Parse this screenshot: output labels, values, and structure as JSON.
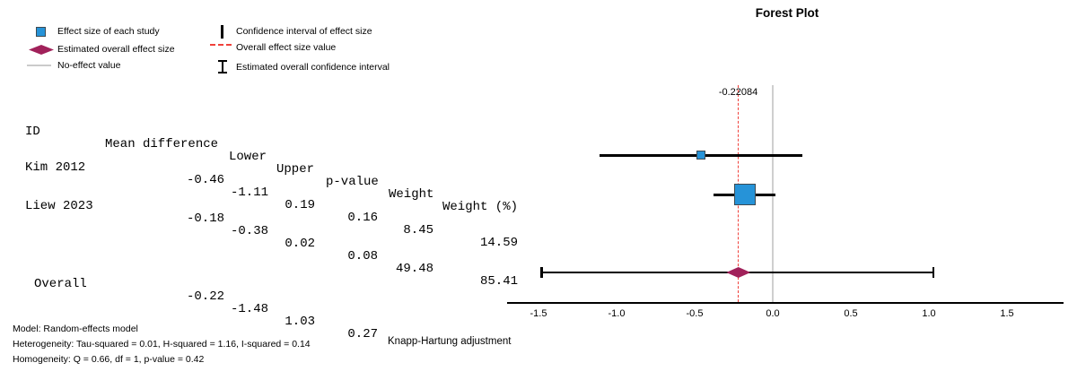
{
  "title": "Forest Plot",
  "legend": {
    "items": [
      {
        "icon": "study-square-icon",
        "label": "Effect size of each study"
      },
      {
        "icon": "overall-diamond-icon",
        "label": "Estimated overall effect size"
      },
      {
        "icon": "no-effect-line-icon",
        "label": "No-effect value"
      },
      {
        "icon": "ci-bar-icon",
        "label": "Confidence interval of effect size"
      },
      {
        "icon": "overall-dashed-line-icon",
        "label": "Overall effect size value"
      },
      {
        "icon": "overall-ci-icon",
        "label": "Estimated overall confidence interval"
      }
    ]
  },
  "table": {
    "headers": [
      "ID",
      "Mean difference",
      "Lower",
      "Upper",
      "p-value",
      "Weight",
      "Weight (%)"
    ],
    "rows": [
      {
        "id": "Kim 2012",
        "mean": "-0.46",
        "lower": "-1.11",
        "upper": "0.19",
        "p": "0.16",
        "weight": "8.45",
        "weight_pct": "14.59"
      },
      {
        "id": "Liew 2023",
        "mean": "-0.18",
        "lower": "-0.38",
        "upper": "0.02",
        "p": "0.08",
        "weight": "49.48",
        "weight_pct": "85.41"
      }
    ],
    "overall_row": {
      "id": "Overall",
      "mean": "-0.22",
      "lower": "-1.48",
      "upper": "1.03",
      "p": "0.27"
    }
  },
  "chart_data": {
    "type": "scatter",
    "subtype": "forest-plot",
    "title": "Forest Plot",
    "xlim": [
      -1.7,
      1.86
    ],
    "x_ticks": [
      -1.5,
      -1.0,
      -0.5,
      0.0,
      0.5,
      1.0,
      1.5
    ],
    "studies": [
      {
        "id": "Kim 2012",
        "mean": -0.46,
        "lower": -1.11,
        "upper": 0.19,
        "p_value": 0.16,
        "weight": 8.45,
        "weight_pct": 14.59
      },
      {
        "id": "Liew 2023",
        "mean": -0.18,
        "lower": -0.38,
        "upper": 0.02,
        "p_value": 0.08,
        "weight": 49.48,
        "weight_pct": 85.41
      }
    ],
    "overall": {
      "id": "Overall",
      "mean": -0.22,
      "lower": -1.48,
      "upper": 1.03,
      "p_value": 0.27,
      "estimate_label": "-0.22084"
    },
    "reference_lines": [
      {
        "value": 0.0,
        "style": "solid",
        "color": "#cfcfcf",
        "meaning": "no-effect value"
      },
      {
        "value": -0.22084,
        "style": "dashed",
        "color": "#f0413b",
        "meaning": "overall effect size value"
      }
    ],
    "colors": {
      "study_marker": "#2693d8",
      "marker_border": "#3d4a52",
      "overall_diamond": "#a1215a",
      "ci_line": "#000000"
    }
  },
  "footer": {
    "model": "Model: Random-effects model",
    "heterogeneity": "Heterogeneity: Tau-squared = 0.01, H-squared = 1.16, I-squared = 0.14",
    "homogeneity": "Homogeneity: Q = 0.66, df = 1, p-value = 0.42",
    "adjustment": "Knapp-Hartung adjustment"
  }
}
